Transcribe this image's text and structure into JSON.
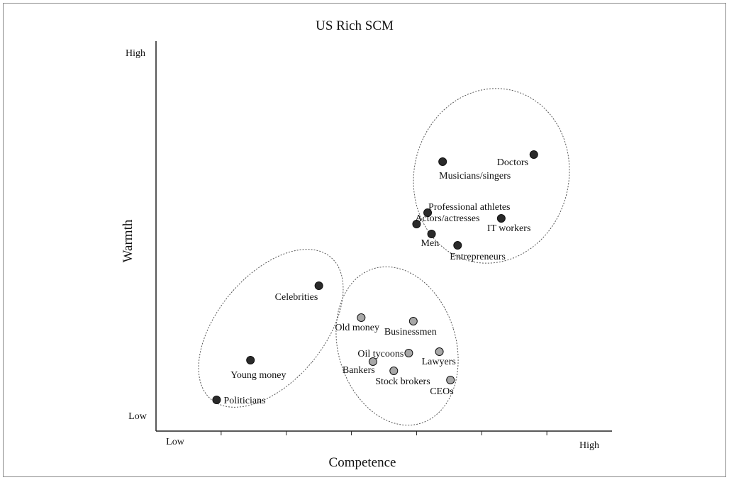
{
  "chart_data": {
    "type": "scatter",
    "title": "US Rich SCM",
    "xlabel": "Competence",
    "ylabel": "Warmth",
    "x_tick_labels": {
      "low": "Low",
      "high": "High"
    },
    "y_tick_labels": {
      "low": "Low",
      "high": "High"
    },
    "xlim": [
      0,
      7
    ],
    "ylim": [
      0,
      5.5
    ],
    "colors": {
      "dark_point": "#2a2a2a",
      "light_point": "#a8a8a8",
      "axis": "#222222",
      "ellipse": "#555555"
    },
    "series": [
      {
        "color": "dark",
        "points": [
          {
            "label": "Doctors",
            "x": 5.8,
            "y": 3.9
          },
          {
            "label": "Musicians/singers",
            "x": 4.4,
            "y": 3.8
          },
          {
            "label": "Professional athletes",
            "x": 4.17,
            "y": 3.08
          },
          {
            "label": "Actors/actresses",
            "x": 4.0,
            "y": 2.92
          },
          {
            "label": "IT workers",
            "x": 5.3,
            "y": 3.0
          },
          {
            "label": "Men",
            "x": 4.23,
            "y": 2.78
          },
          {
            "label": "Entrepreneurs",
            "x": 4.63,
            "y": 2.62
          },
          {
            "label": "Celebrities",
            "x": 2.5,
            "y": 2.05
          },
          {
            "label": "Young money",
            "x": 1.45,
            "y": 1.0
          },
          {
            "label": "Politicians",
            "x": 0.93,
            "y": 0.44
          }
        ]
      },
      {
        "color": "light",
        "points": [
          {
            "label": "Old money",
            "x": 3.15,
            "y": 1.6
          },
          {
            "label": "Businessmen",
            "x": 3.95,
            "y": 1.55
          },
          {
            "label": "Oil tycoons",
            "x": 3.88,
            "y": 1.1
          },
          {
            "label": "Lawyers",
            "x": 4.35,
            "y": 1.12
          },
          {
            "label": "Bankers",
            "x": 3.33,
            "y": 0.98
          },
          {
            "label": "Stock brokers",
            "x": 3.65,
            "y": 0.85
          },
          {
            "label": "CEOs",
            "x": 4.52,
            "y": 0.72
          }
        ]
      }
    ],
    "clusters": 3,
    "grid": false,
    "legend": "none"
  }
}
